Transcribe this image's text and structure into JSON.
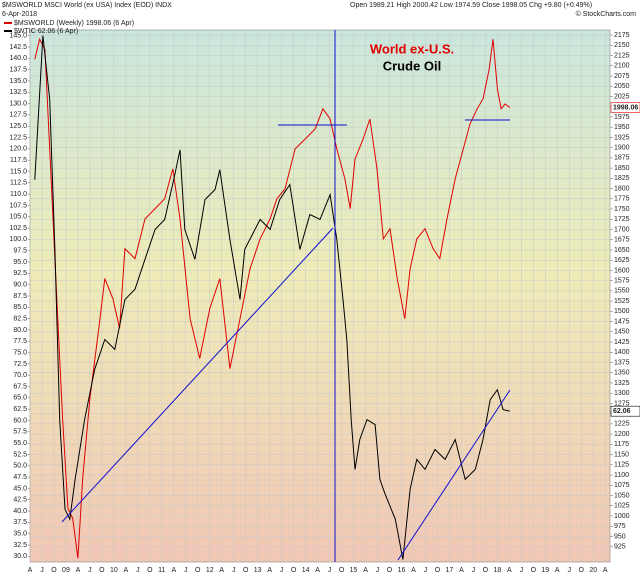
{
  "chart_data": {
    "type": "line",
    "title": "$MSWORLD MSCI World (ex USA) Index (EOD) INDX",
    "date": "6-Apr-2018",
    "ohlc": "Open 1989.21 High 2000.42 Low 1974.59 Close 1998.05 Chg +9.80 (+0.49%)",
    "source": "© StockCharts.com",
    "annotations": [
      {
        "text": "World ex-U.S.",
        "color": "#e00000"
      },
      {
        "text": "Crude Oil",
        "color": "#000000"
      }
    ],
    "grid": true,
    "xlim": [
      2008.25,
      2020.35
    ],
    "xticks": [
      {
        "value": 2008.25,
        "label": "A"
      },
      {
        "value": 2008.5,
        "label": "J"
      },
      {
        "value": 2008.75,
        "label": "O"
      },
      {
        "value": 2009,
        "label": "09"
      },
      {
        "value": 2009.25,
        "label": "A"
      },
      {
        "value": 2009.5,
        "label": "J"
      },
      {
        "value": 2009.75,
        "label": "O"
      },
      {
        "value": 2010,
        "label": "10"
      },
      {
        "value": 2010.25,
        "label": "A"
      },
      {
        "value": 2010.5,
        "label": "J"
      },
      {
        "value": 2010.75,
        "label": "O"
      },
      {
        "value": 2011,
        "label": "11"
      },
      {
        "value": 2011.25,
        "label": "A"
      },
      {
        "value": 2011.5,
        "label": "J"
      },
      {
        "value": 2011.75,
        "label": "O"
      },
      {
        "value": 2012,
        "label": "12"
      },
      {
        "value": 2012.25,
        "label": "A"
      },
      {
        "value": 2012.5,
        "label": "J"
      },
      {
        "value": 2012.75,
        "label": "O"
      },
      {
        "value": 2013,
        "label": "13"
      },
      {
        "value": 2013.25,
        "label": "A"
      },
      {
        "value": 2013.5,
        "label": "J"
      },
      {
        "value": 2013.75,
        "label": "O"
      },
      {
        "value": 2014,
        "label": "14"
      },
      {
        "value": 2014.25,
        "label": "A"
      },
      {
        "value": 2014.5,
        "label": "J"
      },
      {
        "value": 2014.75,
        "label": "O"
      },
      {
        "value": 2015,
        "label": "15"
      },
      {
        "value": 2015.25,
        "label": "A"
      },
      {
        "value": 2015.5,
        "label": "J"
      },
      {
        "value": 2015.75,
        "label": "O"
      },
      {
        "value": 2016,
        "label": "16"
      },
      {
        "value": 2016.25,
        "label": "A"
      },
      {
        "value": 2016.5,
        "label": "J"
      },
      {
        "value": 2016.75,
        "label": "O"
      },
      {
        "value": 2017,
        "label": "17"
      },
      {
        "value": 2017.25,
        "label": "A"
      },
      {
        "value": 2017.5,
        "label": "J"
      },
      {
        "value": 2017.75,
        "label": "O"
      },
      {
        "value": 2018,
        "label": "18"
      },
      {
        "value": 2018.25,
        "label": "A"
      },
      {
        "value": 2018.5,
        "label": "J"
      },
      {
        "value": 2018.75,
        "label": "O"
      },
      {
        "value": 2019,
        "label": "19"
      },
      {
        "value": 2019.25,
        "label": "A"
      },
      {
        "value": 2019.5,
        "label": "J"
      },
      {
        "value": 2019.75,
        "label": "O"
      },
      {
        "value": 2020,
        "label": "20"
      },
      {
        "value": 2020.25,
        "label": "A"
      }
    ],
    "ylim": [
      28.75,
      146.25
    ],
    "yticks": [
      {
        "value": 30,
        "label": "30.0"
      },
      32.5,
      {
        "value": 35,
        "label": "35.0"
      },
      37.5,
      {
        "value": 40,
        "label": "40.0"
      },
      42.5,
      {
        "value": 45,
        "label": "45.0"
      },
      47.5,
      {
        "value": 50,
        "label": "50.0"
      },
      52.5,
      {
        "value": 55,
        "label": "55.0"
      },
      57.5,
      {
        "value": 60,
        "label": "60.0"
      },
      62.5,
      {
        "value": 65,
        "label": "65.0"
      },
      67.5,
      {
        "value": 70,
        "label": "70.0"
      },
      72.5,
      {
        "value": 75,
        "label": "75.0"
      },
      77.5,
      {
        "value": 80,
        "label": "80.0"
      },
      82.5,
      {
        "value": 85,
        "label": "85.0"
      },
      87.5,
      {
        "value": 90,
        "label": "90.0"
      },
      92.5,
      {
        "value": 95,
        "label": "95.0"
      },
      97.5,
      {
        "value": 100,
        "label": "100.0"
      },
      102.5,
      {
        "value": 105,
        "label": "105.0"
      },
      107.5,
      {
        "value": 110,
        "label": "110.0"
      },
      112.5,
      {
        "value": 115,
        "label": "115.0"
      },
      117.5,
      {
        "value": 120,
        "label": "120.0"
      },
      122.5,
      {
        "value": 125,
        "label": "125.0"
      },
      127.5,
      {
        "value": 130,
        "label": "130.0"
      },
      132.5,
      {
        "value": 135,
        "label": "135.0"
      },
      137.5,
      {
        "value": 140,
        "label": "140.0"
      },
      142.5,
      {
        "value": 145,
        "label": "145.0"
      }
    ],
    "y2lim": [
      887.5,
      2187.5
    ],
    "y2ticks": [
      925,
      950,
      975,
      1000,
      1025,
      1050,
      1075,
      1100,
      1125,
      1150,
      1175,
      1200,
      1225,
      1250,
      1275,
      1300,
      1325,
      1350,
      1375,
      1400,
      1425,
      1450,
      1475,
      1500,
      1525,
      1550,
      1575,
      1600,
      1625,
      1650,
      1675,
      1700,
      1725,
      1750,
      1775,
      1800,
      1825,
      1850,
      1875,
      1900,
      1925,
      1950,
      1975,
      2000,
      2025,
      2050,
      2075,
      2100,
      2125,
      2150,
      2175
    ],
    "series": [
      {
        "name": "$MSWORLD (Weekly) 1998.06 (6 Apr)",
        "color": "#e00000",
        "axis": "y2",
        "last_value_label": "1998.06",
        "x": [
          2008.35,
          2008.45,
          2008.56,
          2008.66,
          2008.81,
          2008.93,
          2009.04,
          2009.14,
          2009.25,
          2009.35,
          2009.5,
          2009.71,
          2009.81,
          2009.98,
          2010.12,
          2010.23,
          2010.44,
          2010.65,
          2010.86,
          2011.06,
          2011.23,
          2011.38,
          2011.59,
          2011.79,
          2012.0,
          2012.21,
          2012.42,
          2012.63,
          2012.84,
          2013.05,
          2013.26,
          2013.4,
          2013.57,
          2013.78,
          2013.99,
          2014.2,
          2014.36,
          2014.51,
          2014.65,
          2014.82,
          2014.93,
          2015.03,
          2015.2,
          2015.34,
          2015.49,
          2015.62,
          2015.76,
          2015.91,
          2016.07,
          2016.18,
          2016.32,
          2016.49,
          2016.66,
          2016.8,
          2016.95,
          2017.12,
          2017.29,
          2017.43,
          2017.58,
          2017.7,
          2017.83,
          2017.91,
          2018.0,
          2018.08,
          2018.16,
          2018.26
        ],
        "values": [
          2116,
          2165,
          2140,
          1897,
          1531,
          1238,
          1019,
          994,
          897,
          1092,
          1287,
          1482,
          1580,
          1531,
          1458,
          1653,
          1629,
          1726,
          1751,
          1775,
          1848,
          1726,
          1482,
          1385,
          1507,
          1580,
          1360,
          1482,
          1604,
          1677,
          1726,
          1775,
          1799,
          1897,
          1921,
          1946,
          1995,
          1970,
          1897,
          1824,
          1751,
          1872,
          1921,
          1970,
          1848,
          1677,
          1702,
          1580,
          1482,
          1604,
          1677,
          1702,
          1653,
          1629,
          1726,
          1824,
          1897,
          1958,
          1995,
          2019,
          2092,
          2165,
          2043,
          1995,
          2007,
          1998.06
        ]
      },
      {
        "name": "$WTIC 62.06 (6 Apr)",
        "color": "#000000",
        "axis": "y",
        "last_value_label": "62.06",
        "x": [
          2008.35,
          2008.52,
          2008.66,
          2008.77,
          2008.87,
          2008.98,
          2009.08,
          2009.19,
          2009.39,
          2009.6,
          2009.81,
          2010.02,
          2010.23,
          2010.44,
          2010.65,
          2010.86,
          2011.06,
          2011.27,
          2011.38,
          2011.48,
          2011.69,
          2011.9,
          2012.11,
          2012.21,
          2012.42,
          2012.63,
          2012.73,
          2013.05,
          2013.26,
          2013.46,
          2013.67,
          2013.88,
          2014.09,
          2014.3,
          2014.51,
          2014.65,
          2014.78,
          2014.86,
          2014.95,
          2015.03,
          2015.13,
          2015.28,
          2015.45,
          2015.55,
          2015.66,
          2015.87,
          2016.03,
          2016.18,
          2016.32,
          2016.49,
          2016.7,
          2016.91,
          2017.12,
          2017.33,
          2017.54,
          2017.7,
          2017.85,
          2018.0,
          2018.12,
          2018.26
        ],
        "values": [
          113.2,
          145,
          130.9,
          97.8,
          60.2,
          40.4,
          38.2,
          47,
          60.2,
          71.3,
          77.9,
          75.7,
          86.7,
          89,
          95.6,
          102.2,
          104.4,
          114.3,
          119.8,
          102.2,
          95.6,
          108.8,
          111,
          115.4,
          100,
          86.7,
          97.8,
          104.4,
          102.2,
          108.8,
          112.1,
          97.8,
          105.5,
          104.4,
          109.9,
          100,
          86.7,
          77.9,
          60.2,
          49.2,
          55.8,
          60.2,
          59.1,
          47,
          43.7,
          38.2,
          29.3,
          44.8,
          51.4,
          49.2,
          53.6,
          51.4,
          55.8,
          47,
          49.2,
          55.8,
          64.6,
          66.8,
          62.4,
          62.06
        ]
      }
    ]
  }
}
